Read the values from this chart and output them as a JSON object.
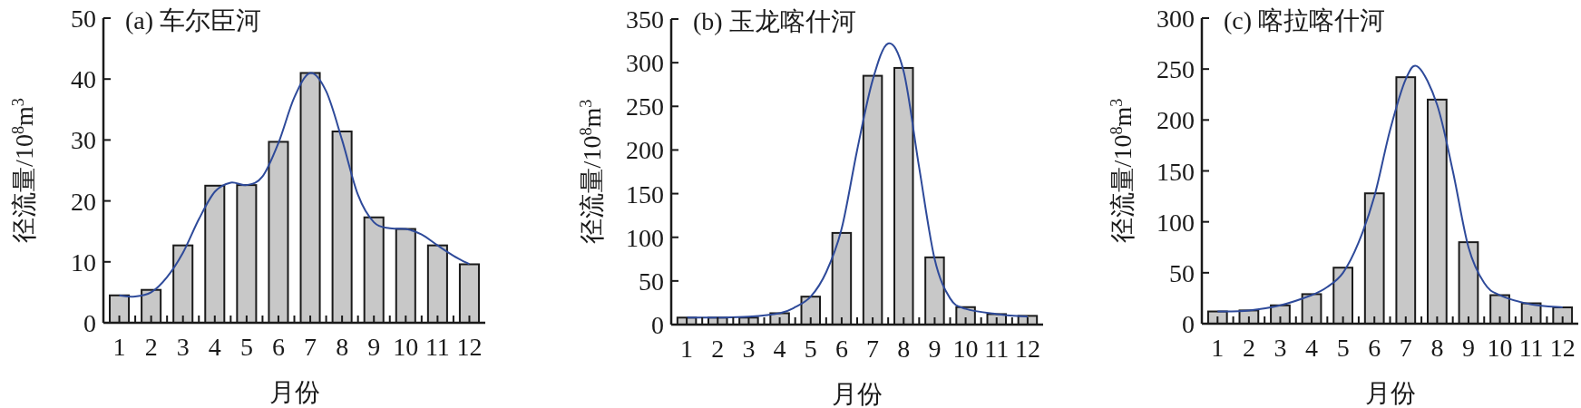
{
  "chart_data": [
    {
      "type": "bar",
      "title": "(a) 车尔臣河",
      "xlabel": "月份",
      "ylabel": "径流量/10$^{8}$m$^{3}$",
      "xlim": [
        0.5,
        12.5
      ],
      "xticks": [
        1,
        {
          "value": 1.5,
          "label": null
        },
        2,
        {
          "value": 2.5,
          "label": null
        },
        3,
        {
          "value": 3.5,
          "label": null
        },
        4,
        {
          "value": 4.5,
          "label": null
        },
        5,
        {
          "value": 5.5,
          "label": null
        },
        6,
        {
          "value": 6.5,
          "label": null
        },
        7,
        {
          "value": 7.5,
          "label": null
        },
        8,
        {
          "value": 8.5,
          "label": null
        },
        9,
        {
          "value": 9.5,
          "label": null
        },
        10,
        {
          "value": 10.5,
          "label": null
        },
        11,
        {
          "value": 11.5,
          "label": null
        },
        12
      ],
      "ylim": [
        0,
        50
      ],
      "yticks": [
        0,
        10,
        20,
        30,
        40,
        50
      ],
      "grid": false,
      "series": [
        {
          "type": "bar",
          "color": "#c8c8c8",
          "x": [
            1,
            2,
            3,
            4,
            5,
            6,
            7,
            8,
            9,
            10,
            11,
            12
          ],
          "values": [
            4.5,
            5.4,
            12.7,
            22.5,
            22.6,
            29.7,
            41,
            31.4,
            17.3,
            15.4,
            12.7,
            9.6
          ]
        },
        {
          "type": "line",
          "color": "#2e4a9a",
          "x": [
            1,
            1.5,
            2,
            2.5,
            3,
            3.5,
            4,
            4.5,
            5,
            5.5,
            6,
            6.5,
            7,
            7.5,
            8,
            8.5,
            9,
            9.5,
            10,
            10.5,
            11,
            11.5,
            12
          ],
          "values": [
            4.5,
            4.3,
            5.0,
            7.5,
            11.5,
            17,
            21.5,
            23,
            22.6,
            24,
            29.5,
            37,
            41,
            38,
            30,
            21,
            16.5,
            15.5,
            15.4,
            14.5,
            12.7,
            11,
            9.6
          ]
        }
      ]
    },
    {
      "type": "bar",
      "title": "(b) 玉龙喀什河",
      "xlabel": "月份",
      "ylabel": "径流量/10$^{8}$m$^{3}$",
      "xlim": [
        0.5,
        12.5
      ],
      "xticks": [
        1,
        {
          "value": 1.5,
          "label": null
        },
        2,
        {
          "value": 2.5,
          "label": null
        },
        3,
        {
          "value": 3.5,
          "label": null
        },
        4,
        {
          "value": 4.5,
          "label": null
        },
        5,
        {
          "value": 5.5,
          "label": null
        },
        6,
        {
          "value": 6.5,
          "label": null
        },
        7,
        {
          "value": 7.5,
          "label": null
        },
        8,
        {
          "value": 8.5,
          "label": null
        },
        9,
        {
          "value": 9.5,
          "label": null
        },
        10,
        {
          "value": 10.5,
          "label": null
        },
        11,
        {
          "value": 11.5,
          "label": null
        },
        12
      ],
      "ylim": [
        0,
        350
      ],
      "yticks": [
        0,
        50,
        100,
        150,
        200,
        250,
        300,
        350
      ],
      "grid": false,
      "series": [
        {
          "type": "bar",
          "color": "#c8c8c8",
          "x": [
            1,
            2,
            3,
            4,
            5,
            6,
            7,
            8,
            9,
            10,
            11,
            12
          ],
          "values": [
            8,
            8,
            8,
            13,
            32,
            105,
            285,
            294,
            77,
            20,
            12,
            10
          ]
        },
        {
          "type": "line",
          "color": "#2e4a9a",
          "x": [
            1,
            2,
            3,
            4,
            4.5,
            5,
            5.5,
            6,
            6.5,
            7,
            7.5,
            8,
            8.5,
            9,
            9.5,
            10,
            11,
            12
          ],
          "values": [
            8,
            8,
            9,
            13,
            20,
            32,
            60,
            110,
            200,
            280,
            322,
            290,
            180,
            75,
            30,
            18,
            12,
            9
          ]
        }
      ]
    },
    {
      "type": "bar",
      "title": "(c) 喀拉喀什河",
      "xlabel": "月份",
      "ylabel": "径流量/10$^{8}$m$^{3}$",
      "xlim": [
        0.5,
        12.5
      ],
      "xticks": [
        1,
        {
          "value": 1.5,
          "label": null
        },
        2,
        {
          "value": 2.5,
          "label": null
        },
        3,
        {
          "value": 3.5,
          "label": null
        },
        4,
        {
          "value": 4.5,
          "label": null
        },
        5,
        {
          "value": 5.5,
          "label": null
        },
        6,
        {
          "value": 6.5,
          "label": null
        },
        7,
        {
          "value": 7.5,
          "label": null
        },
        8,
        {
          "value": 8.5,
          "label": null
        },
        9,
        {
          "value": 9.5,
          "label": null
        },
        10,
        {
          "value": 10.5,
          "label": null
        },
        11,
        {
          "value": 11.5,
          "label": null
        },
        12
      ],
      "ylim": [
        0,
        300
      ],
      "yticks": [
        0,
        50,
        100,
        150,
        200,
        250,
        300
      ],
      "grid": false,
      "series": [
        {
          "type": "bar",
          "color": "#c8c8c8",
          "x": [
            1,
            2,
            3,
            4,
            5,
            6,
            7,
            8,
            9,
            10,
            11,
            12
          ],
          "values": [
            12,
            13,
            18,
            29,
            55,
            128,
            242,
            220,
            80,
            28,
            20,
            16
          ]
        },
        {
          "type": "line",
          "color": "#2e4a9a",
          "x": [
            1,
            2,
            3,
            4,
            4.5,
            5,
            5.5,
            6,
            6.5,
            7,
            7.4,
            8,
            8.5,
            9,
            9.5,
            10,
            11,
            12
          ],
          "values": [
            12,
            13,
            18,
            28,
            36,
            50,
            80,
            125,
            190,
            240,
            252,
            215,
            150,
            75,
            40,
            28,
            19,
            16
          ]
        }
      ]
    }
  ]
}
